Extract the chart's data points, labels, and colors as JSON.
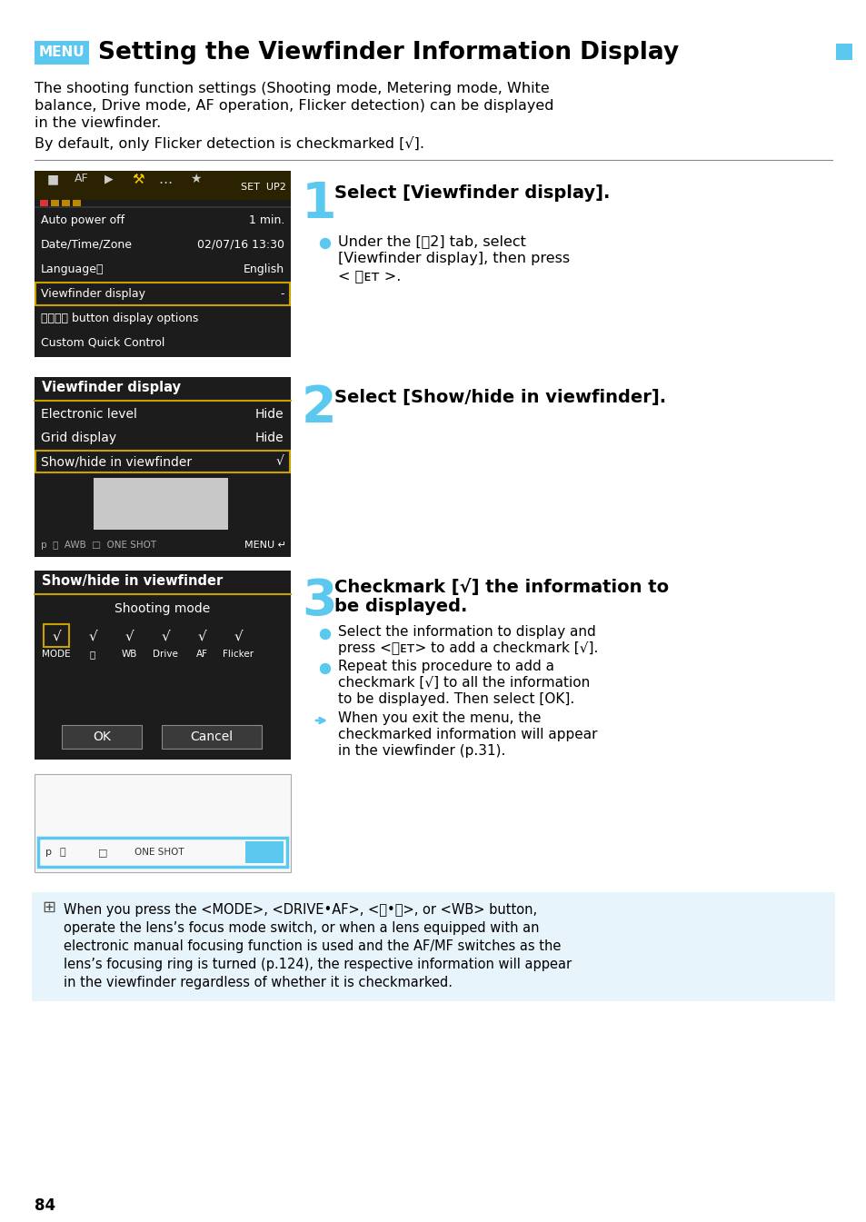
{
  "title": "Setting the Viewfinder Information Display",
  "menu_label": "MENU",
  "menu_color": "#5BC8F0",
  "square_color": "#5BC8F0",
  "page_number": "84",
  "bg_color": "#ffffff",
  "text_color": "#000000",
  "screen_bg": "#1c1c1c",
  "screen_selected_bg": "#c8a000",
  "cyan_color": "#5BC8F0",
  "note_bg": "#e8f4fb"
}
